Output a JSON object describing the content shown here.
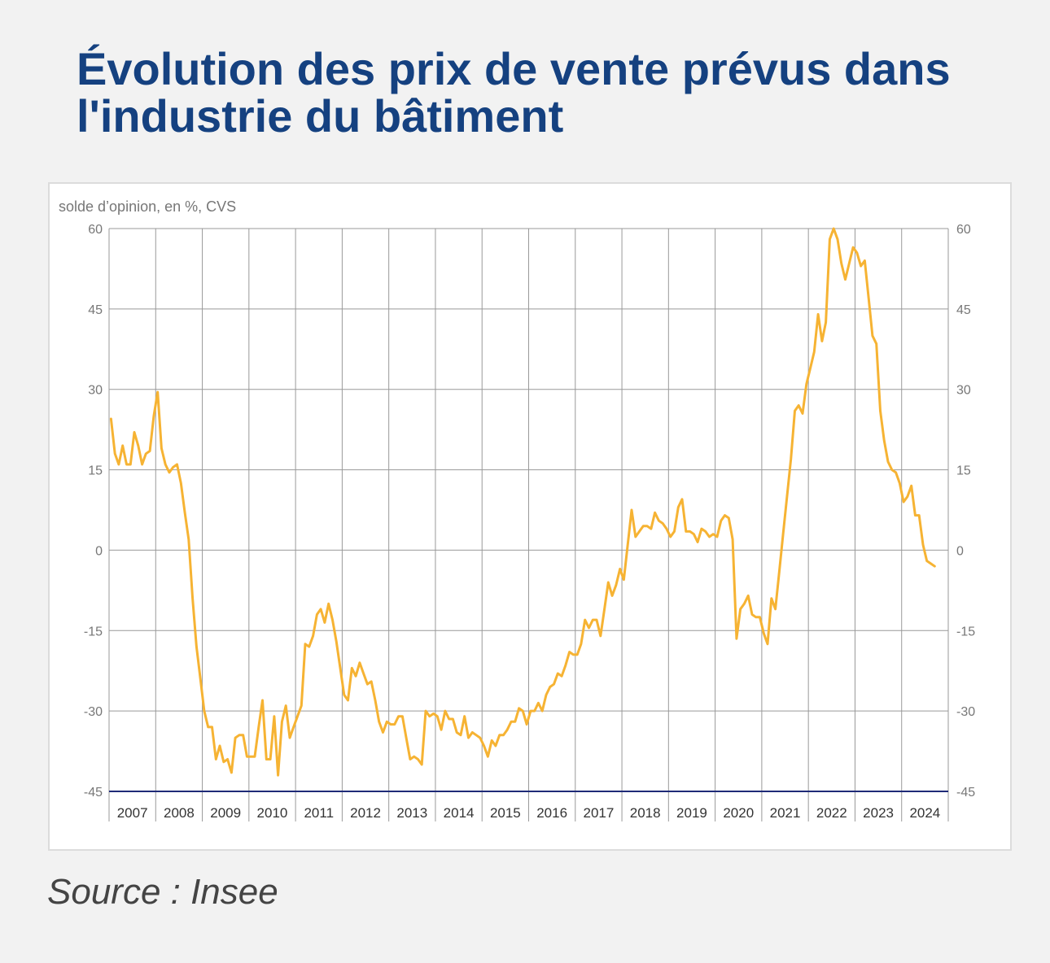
{
  "title": "Évolution des prix de vente prévus dans l'industrie du bâtiment",
  "source": "Source : Insee",
  "colors": {
    "title": "#154180",
    "line": "#f6b333",
    "baseline": "#1f2a77",
    "grid": "#999999",
    "text": "#777777"
  },
  "chart_data": {
    "type": "line",
    "unit_label": "solde d’opinion, en %, CVS",
    "ylim": [
      -45,
      60
    ],
    "yticks": [
      "60",
      "45",
      "30",
      "15",
      "0",
      "-15",
      "-30",
      "-45"
    ],
    "ytick_values": [
      60,
      45,
      30,
      15,
      0,
      -15,
      -30,
      -45
    ],
    "years": [
      "2007",
      "2008",
      "2009",
      "2010",
      "2011",
      "2012",
      "2013",
      "2014",
      "2015",
      "2016",
      "2017",
      "2018",
      "2019",
      "2020",
      "2021",
      "2022",
      "2023",
      "2024"
    ],
    "grid": true,
    "right_axis": true,
    "series": [
      {
        "frequency": "monthly",
        "start": "2007-01",
        "values": [
          24.5,
          18,
          16,
          19.5,
          16,
          16,
          22,
          19.5,
          16,
          18,
          18.5,
          25,
          29.5,
          19,
          16,
          14.5,
          15.5,
          16,
          12.5,
          7,
          2,
          -9,
          -18,
          -24,
          -30,
          -33,
          -33,
          -39,
          -36.5,
          -39.5,
          -39,
          -41.5,
          -35,
          -34.5,
          -34.5,
          -38.5,
          -38.5,
          -38.5,
          -33,
          -28,
          -39,
          -39,
          -31,
          -42,
          -32,
          -29,
          -35,
          -33,
          -31,
          -29,
          -17.5,
          -18,
          -16,
          -12,
          -11,
          -13.5,
          -10,
          -13,
          -17,
          -22,
          -27,
          -28,
          -22,
          -23.5,
          -21,
          -23,
          -25,
          -24.5,
          -28,
          -32,
          -34,
          -32,
          -32.5,
          -32.5,
          -31,
          -31,
          -35,
          -39,
          -38.5,
          -39,
          -40,
          -30,
          -31,
          -30.5,
          -31,
          -33.5,
          -30,
          -31.5,
          -31.5,
          -34,
          -34.5,
          -31,
          -35,
          -34,
          -34.5,
          -35,
          -36.5,
          -38.5,
          -35.5,
          -36.5,
          -34.5,
          -34.5,
          -33.5,
          -32,
          -32,
          -29.5,
          -30,
          -32.5,
          -30,
          -30,
          -28.5,
          -30,
          -27,
          -25.5,
          -25,
          -23,
          -23.5,
          -21.5,
          -19,
          -19.5,
          -19.5,
          -17.5,
          -13,
          -14.5,
          -13,
          -13,
          -16,
          -11,
          -6,
          -8.5,
          -6.5,
          -3.5,
          -5.5,
          1,
          7.5,
          2.5,
          3.5,
          4.5,
          4.5,
          4,
          7,
          5.5,
          5,
          4,
          2.5,
          3.5,
          8,
          9.5,
          3.5,
          3.5,
          3,
          1.5,
          4,
          3.5,
          2.5,
          3,
          2.5,
          5.5,
          6.5,
          6,
          2,
          -16.5,
          -11,
          -10,
          -8.5,
          -12,
          -12.5,
          -12.5,
          -15.5,
          -17.5,
          -9,
          -11,
          -4,
          3,
          10,
          17,
          26,
          27,
          25.5,
          31,
          34,
          37,
          44,
          39,
          42.5,
          58,
          60,
          58,
          53.5,
          50.5,
          53.5,
          56.5,
          55.5,
          53,
          54,
          47,
          40,
          38.5,
          26,
          20.5,
          16.5,
          15,
          14.5,
          12.5,
          9,
          10,
          12,
          6.5,
          6.5,
          1,
          -2,
          -2.5,
          -3
        ]
      }
    ]
  }
}
